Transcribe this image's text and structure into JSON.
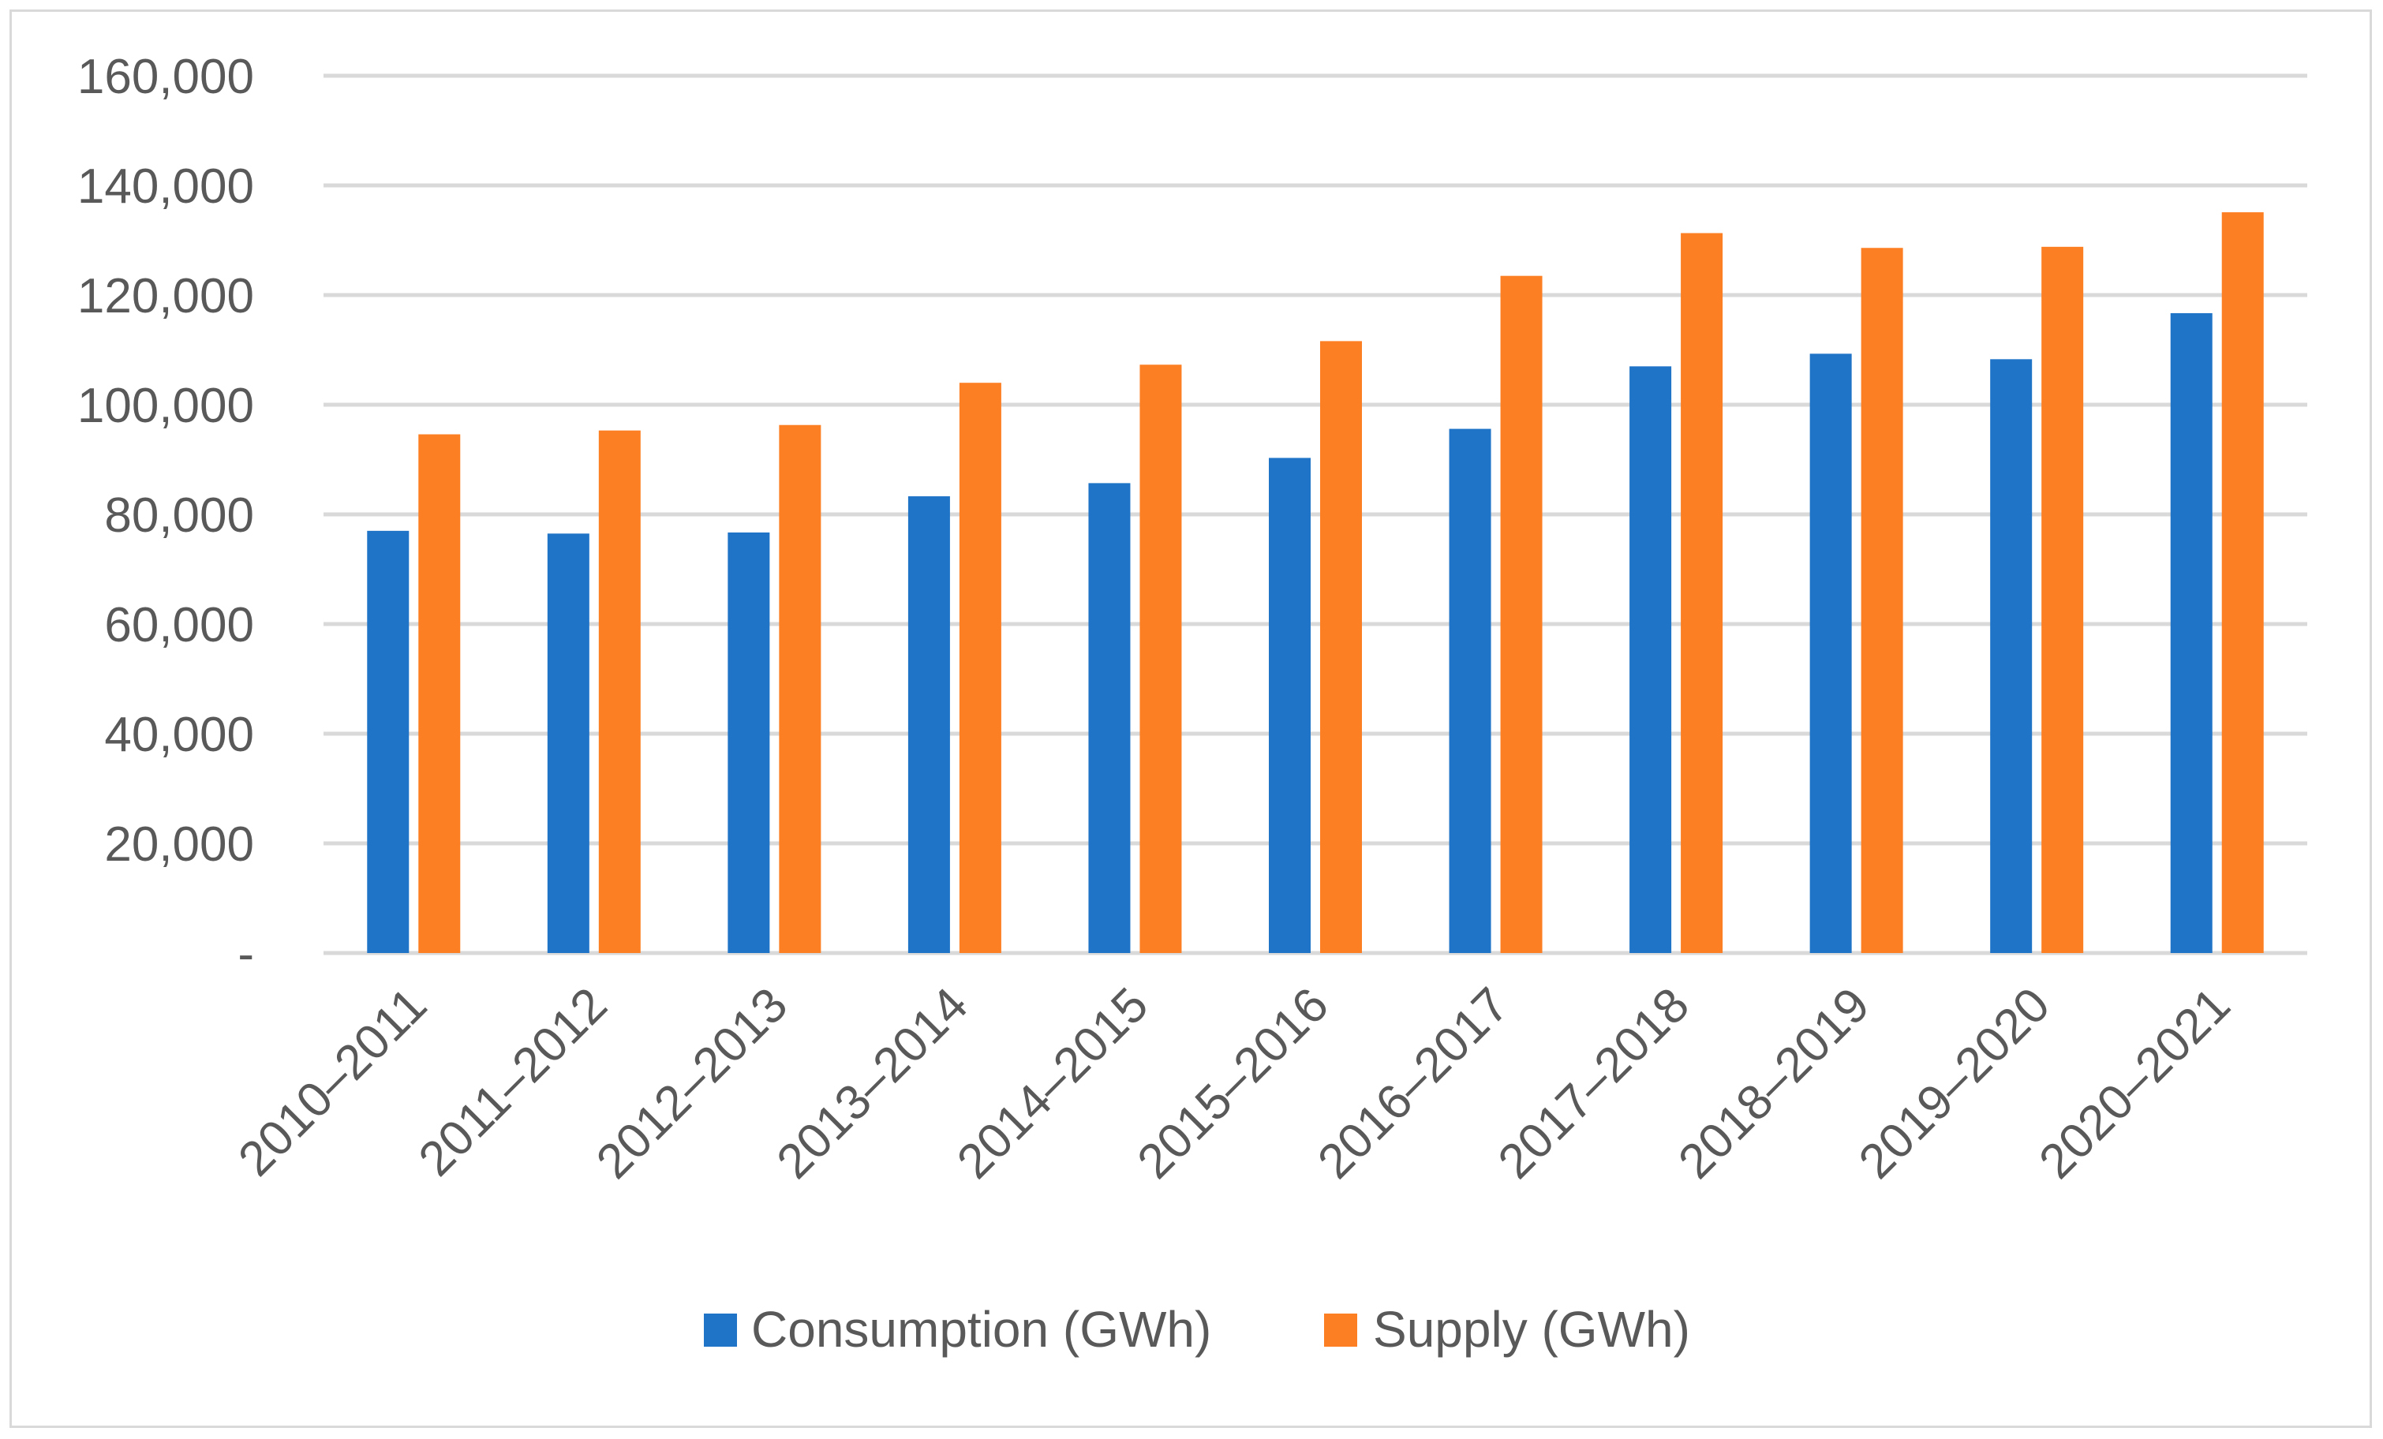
{
  "chart_data": {
    "type": "bar",
    "title": "",
    "xlabel": "",
    "ylabel": "",
    "ylim": [
      0,
      160000
    ],
    "y_ticks": [
      0,
      20000,
      40000,
      60000,
      80000,
      100000,
      120000,
      140000,
      160000
    ],
    "y_tick_labels": [
      "-",
      "20,000",
      "40,000",
      "60,000",
      "80,000",
      "100,000",
      "120,000",
      "140,000",
      "160,000"
    ],
    "grid": true,
    "legend_position": "bottom",
    "categories": [
      "2010–2011",
      "2011–2012",
      "2012–2013",
      "2013–2014",
      "2014–2015",
      "2015–2016",
      "2016–2017",
      "2017–2018",
      "2018–2019",
      "2019–2020",
      "2020–2021"
    ],
    "series": [
      {
        "name": "Consumption (GWh)",
        "color": "#1f74c8",
        "values": [
          77000,
          76500,
          76700,
          83300,
          85700,
          90300,
          95600,
          107000,
          109300,
          108300,
          116700
        ]
      },
      {
        "name": "Supply (GWh)",
        "color": "#fd7f23",
        "values": [
          94600,
          95300,
          96300,
          104000,
          107300,
          111600,
          123500,
          131300,
          128600,
          128800,
          135100
        ]
      }
    ]
  }
}
